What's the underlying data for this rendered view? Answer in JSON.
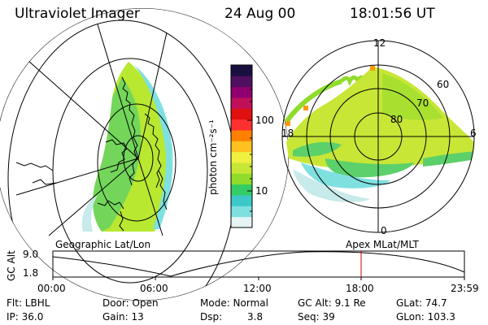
{
  "header": {
    "instrument": "Ultraviolet Imager",
    "date": "24 Aug 00",
    "time": "18:01:56 UT"
  },
  "geo_panel": {
    "label": "Geographic Lat/Lon"
  },
  "colorbar": {
    "unit_label": "photon cm⁻²s⁻¹",
    "ticks": [
      "100",
      "10"
    ],
    "scale": "log",
    "colors": [
      "#e8f4f4",
      "#7fe0e0",
      "#3cc8c8",
      "#33cc66",
      "#8fdc2a",
      "#c8e636",
      "#f0f040",
      "#ffc020",
      "#ff8000",
      "#ff3030",
      "#e01010",
      "#c0105a",
      "#900070",
      "#501060",
      "#1a1040"
    ]
  },
  "polar_panel": {
    "label": "Apex MLat/MLT",
    "lat_labels": [
      "80",
      "70",
      "60"
    ],
    "mlt_labels": [
      "12",
      "6",
      "18",
      "0"
    ]
  },
  "timeline": {
    "ylabel": "GC Alt",
    "y_ticks": [
      "9.0",
      "1.8"
    ],
    "x_ticks": [
      "00:00",
      "06:00",
      "12:00",
      "18:00",
      "23:59"
    ],
    "marker_color": "#cc0000"
  },
  "info": {
    "flt": "Flt: LBHL",
    "ip": "IP: 36.0",
    "door": "Door: Open",
    "gain": "Gain: 13",
    "mode": "Mode: Normal",
    "dsp_label": "Dsp:",
    "dsp_value": "3.8",
    "gc_alt": "GC Alt: 9.1 Re",
    "seq": "Seq: 39",
    "glat": "GLat: 74.7",
    "glon": "GLon: 103.3"
  }
}
